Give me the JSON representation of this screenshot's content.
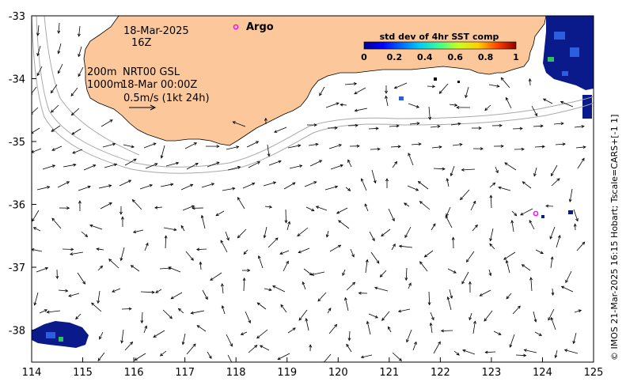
{
  "map": {
    "date_label": "18-Mar-2025",
    "time_label": "16Z",
    "depth_label": "200m",
    "product_label": "NRT00 GSL",
    "contour_label": "1000m",
    "analysis_time": "18-Mar 00:00Z",
    "scale_label": "0.5m/s (1kt 24h)",
    "argo_label": "Argo",
    "colorbar_title": "std dev of 4hr SST comp",
    "colorbar_ticks": [
      "0",
      "0.2",
      "0.4",
      "0.6",
      "0.8",
      "1"
    ],
    "credit": "© IMOS 21-Mar-2025 16:15 Hobart; Tscale=CARS+[-1 1]",
    "lon_ticks": [
      "114",
      "115",
      "116",
      "117",
      "118",
      "119",
      "120",
      "121",
      "122",
      "123",
      "124",
      "125"
    ],
    "lat_ticks": [
      "-33",
      "-34",
      "-35",
      "-36",
      "-37",
      "-38"
    ],
    "colors": {
      "land": "#fcc89b",
      "contour": "#a8a8a8",
      "argo": "#ff00ff",
      "sst_dark": "#0a1a8a",
      "sst_mid": "#2c5fe0"
    }
  }
}
